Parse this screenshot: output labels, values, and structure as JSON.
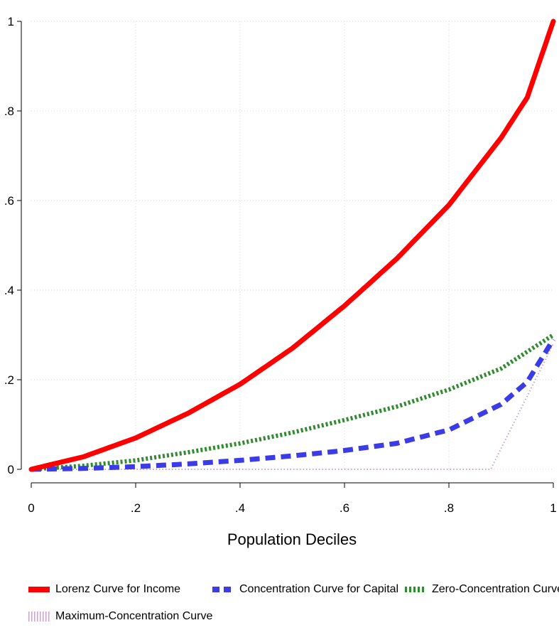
{
  "chart_data": {
    "type": "line",
    "title": "",
    "xlabel": "Population Deciles",
    "ylabel": "",
    "xlim": [
      0,
      1
    ],
    "ylim": [
      0,
      1
    ],
    "x_ticks": [
      "0",
      ".2",
      ".4",
      ".6",
      ".8",
      "1"
    ],
    "y_ticks": [
      "0",
      ".2",
      ".4",
      ".6",
      ".8",
      "1"
    ],
    "grid": true,
    "legend_position": "bottom",
    "series": [
      {
        "name": "Lorenz Curve for Income",
        "color": "#ff0000",
        "style": "solid",
        "x": [
          0,
          0.1,
          0.2,
          0.3,
          0.4,
          0.5,
          0.6,
          0.7,
          0.8,
          0.9,
          0.95,
          1
        ],
        "y": [
          0,
          0.028,
          0.07,
          0.125,
          0.19,
          0.27,
          0.365,
          0.47,
          0.59,
          0.74,
          0.83,
          1
        ]
      },
      {
        "name": "Concentration Curve for Capital",
        "color": "#3c3ce6",
        "style": "dashed",
        "x": [
          0,
          0.1,
          0.2,
          0.3,
          0.4,
          0.5,
          0.6,
          0.7,
          0.8,
          0.9,
          0.95,
          1
        ],
        "y": [
          0,
          0.002,
          0.006,
          0.012,
          0.02,
          0.03,
          0.042,
          0.058,
          0.088,
          0.145,
          0.195,
          0.29
        ]
      },
      {
        "name": "Zero-Concentration Curve",
        "color": "#2e8b2e",
        "style": "dotted",
        "x": [
          0,
          0.1,
          0.2,
          0.3,
          0.4,
          0.5,
          0.6,
          0.7,
          0.8,
          0.9,
          1
        ],
        "y": [
          0,
          0.008,
          0.02,
          0.038,
          0.058,
          0.082,
          0.11,
          0.14,
          0.178,
          0.225,
          0.3
        ]
      },
      {
        "name": "Maximum-Concentration Curve",
        "color": "#c9a3c9",
        "style": "dotted-thin",
        "x": [
          0,
          0.2,
          0.4,
          0.6,
          0.8,
          0.88,
          1
        ],
        "y": [
          0,
          0,
          0,
          0,
          0,
          0,
          0.28
        ]
      }
    ]
  }
}
